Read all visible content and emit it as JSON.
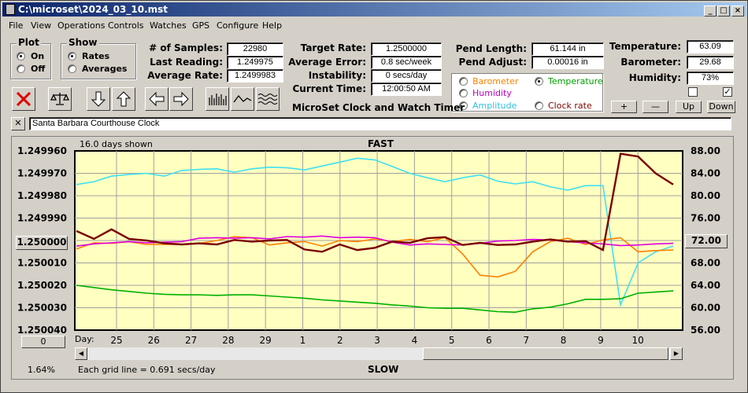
{
  "window": {
    "title": "C:\\microset\\2024_03_10.mst"
  },
  "menu": [
    "File",
    "View",
    "Operations",
    "Controls",
    "Watches",
    "GPS",
    "Configure",
    "Help"
  ],
  "plot_group": {
    "title": "Plot",
    "options": [
      "On",
      "Off"
    ],
    "selected": "On"
  },
  "show_group": {
    "title": "Show",
    "options": [
      "Rates",
      "Averages"
    ],
    "selected": "Rates"
  },
  "stats": {
    "samples_label": "# of Samples:",
    "samples": "22980",
    "last_label": "Last Reading:",
    "last": "1.249975",
    "avg_label": "Average Rate:",
    "avg": "1.2499983",
    "target_label": "Target Rate:",
    "target": "1.2500000",
    "avgerr_label": "Average Error:",
    "avgerr": "0.8 sec/week",
    "instab_label": "Instability:",
    "instab": "0 secs/day",
    "time_label": "Current Time:",
    "time": "12:00:50 AM",
    "pendlen_label": "Pend Length:",
    "pendlen": "61.144 in",
    "pendadj_label": "Pend Adjust:",
    "pendadj": "0.00016 in",
    "temp_label": "Temperature:",
    "temp": "63.09",
    "baro_label": "Barometer:",
    "baro": "29.68",
    "hum_label": "Humidity:",
    "hum": "73%"
  },
  "app_title": "MicroSet Clock and Watch Timer",
  "sensor_options": {
    "barometer": "Barometer",
    "temperature": "Temperature",
    "humidity": "Humidity",
    "amplitude": "Amplitude",
    "clock_rate": "Clock rate",
    "selected": "Temperature"
  },
  "right_buttons": {
    "plus": "+",
    "minus": "—",
    "up": "Up",
    "down": "Down"
  },
  "clock_name": "Santa Barbara Courthouse Clock",
  "chart_header": {
    "days_shown": "16.0 days shown",
    "fast": "FAST",
    "slow": "SLOW",
    "grid_note": "Each grid line = 0.691 secs/day",
    "pct": "1.64%",
    "center_btn": "1.250000",
    "right_btn": "72.00",
    "zero_btn": "0",
    "day_label": "Day:"
  },
  "colors": {
    "plot_bg": "#ffffc0",
    "rate": "#7a0000",
    "temperature": "#00b000",
    "barometer": "#ff8000",
    "humidity": "#e000e0",
    "amplitude": "#40e0f0"
  },
  "chart_data": {
    "type": "line",
    "x_ticks": [
      "25",
      "26",
      "27",
      "28",
      "29",
      "1",
      "2",
      "3",
      "4",
      "5",
      "6",
      "7",
      "8",
      "9",
      "10"
    ],
    "y_left_ticks": [
      "1.249960",
      "1.249970",
      "1.249980",
      "1.249990",
      "1.250000",
      "1.250010",
      "1.250020",
      "1.250030",
      "1.250040"
    ],
    "y_right_ticks": [
      "88.00",
      "84.00",
      "80.00",
      "76.00",
      "72.00",
      "68.00",
      "64.00",
      "60.00",
      "56.00"
    ],
    "ylim_left": [
      1.25004,
      1.24996
    ],
    "ylim_right": [
      56,
      88
    ],
    "series": [
      {
        "name": "Amplitude",
        "values": [
          82,
          82.5,
          83.5,
          83.8,
          84,
          83.5,
          84.5,
          84.7,
          84.8,
          84.2,
          84.8,
          85.1,
          85,
          84.6,
          85.3,
          86,
          86.7,
          86.4,
          85.2,
          84,
          83.2,
          82.5,
          83.2,
          83.7,
          82.6,
          82.1,
          82.5,
          81.6,
          81,
          81.8,
          81.8,
          60.5,
          68,
          70,
          71
        ]
      },
      {
        "name": "Temperature",
        "values": [
          64,
          63.6,
          63.2,
          62.9,
          62.6,
          62.4,
          62.3,
          62.3,
          62.2,
          62.3,
          62.3,
          62.1,
          61.9,
          61.7,
          61.4,
          61.2,
          61,
          60.8,
          60.5,
          60.3,
          60,
          59.9,
          59.9,
          59.6,
          59.3,
          59.2,
          59.8,
          60.1,
          60.7,
          61.5,
          61.5,
          61.6,
          62.6,
          62.8,
          63
        ]
      },
      {
        "name": "Barometer",
        "values": [
          70.5,
          71.6,
          71.5,
          71.8,
          71.3,
          71.3,
          71.3,
          71.5,
          72,
          72.7,
          72.5,
          71.2,
          71.6,
          71.8,
          71,
          72,
          71.8,
          72.3,
          71.8,
          72.2,
          71.8,
          72.5,
          69.6,
          65.8,
          65.5,
          66.5,
          70,
          71.8,
          72.4,
          71.3,
          72.1,
          72.5,
          70,
          70.2,
          70.3
        ]
      },
      {
        "name": "Humidity",
        "values": [
          71,
          71.4,
          71.6,
          71.8,
          71.6,
          71.7,
          71.8,
          72.4,
          72.5,
          72.4,
          72.5,
          72.3,
          72.7,
          72.6,
          72.8,
          72.5,
          72.6,
          72.5,
          71.7,
          71.2,
          71.4,
          71.3,
          71.2,
          71.5,
          71.9,
          72,
          72.2,
          72.1,
          71.8,
          71.6,
          71.4,
          71.1,
          71.2,
          71.4,
          71.5
        ]
      },
      {
        "name": "Rate",
        "values": [
          73.7,
          72.3,
          74,
          72.3,
          72,
          71.5,
          71.3,
          71.5,
          71.3,
          72.1,
          71.8,
          72,
          72.1,
          70.4,
          70,
          71.3,
          70.3,
          70.7,
          71.8,
          71.6,
          72.4,
          72.6,
          71.2,
          71.6,
          71.2,
          71.3,
          71.8,
          72.2,
          71.8,
          71.9,
          70.3,
          87.5,
          87,
          84,
          82
        ]
      }
    ],
    "xlabel": "Day:"
  }
}
